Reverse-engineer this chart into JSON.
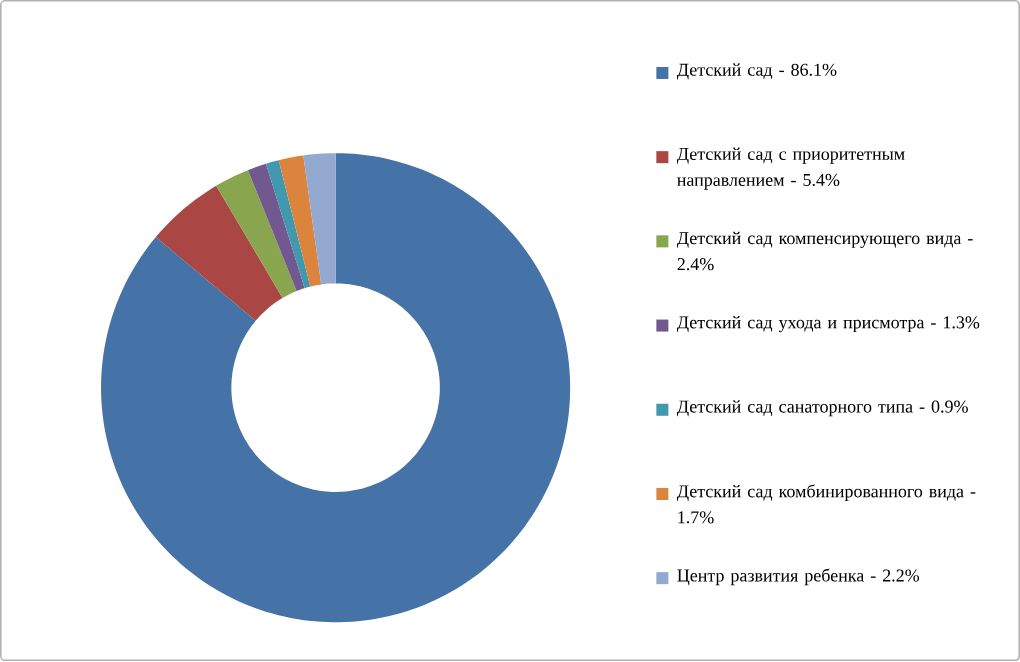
{
  "chart_data": {
    "type": "donut",
    "legend": "right",
    "categories": [
      "Детский сад - 86.1%",
      "Детский сад с приоритетным направлением - 5.4%",
      "Детский сад компенсирующего вида - 2.4%",
      "Детский сад ухода и присмотра - 1.3%",
      "Детский сад санаторного типа - 0.9%",
      "Детский сад комбинированного вида - 1.7%",
      "Центр развития ребенка - 2.2%"
    ],
    "values": [
      86.1,
      5.4,
      2.4,
      1.3,
      0.9,
      1.7,
      2.2
    ],
    "colors": [
      "#4572a7",
      "#aa4643",
      "#89a54e",
      "#71588f",
      "#4198af",
      "#db843d",
      "#93a9cf"
    ]
  }
}
